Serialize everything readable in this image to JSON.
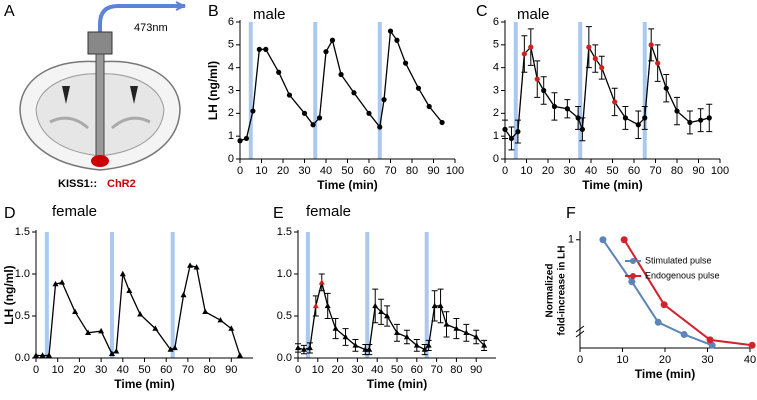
{
  "diagram": {
    "panel": "A",
    "wavelength": "473nm",
    "construct_prefix": "KISS1::",
    "construct_gene": "ChR2"
  },
  "chart_data": [
    {
      "type": "line",
      "panel": "B",
      "title": "male",
      "xlabel": "Time (min)",
      "ylabel": "LH (ng/ml)",
      "xlim": [
        0,
        100
      ],
      "xticks": [
        0,
        10,
        20,
        30,
        40,
        50,
        60,
        70,
        80,
        90,
        100
      ],
      "ylim": [
        0,
        6
      ],
      "yticks": [
        0,
        1,
        2,
        3,
        4,
        5,
        6
      ],
      "marker": "circle",
      "stimulus_times": [
        5,
        35,
        65
      ],
      "stimulus_color": "#a9c9ef",
      "x": [
        0,
        3,
        6,
        9,
        12,
        18,
        23,
        30,
        34,
        37,
        40,
        43,
        47,
        53,
        60,
        65,
        67,
        70,
        73,
        77,
        83,
        88,
        94
      ],
      "series": [
        {
          "color": "#000000",
          "values": [
            0.8,
            0.9,
            2.1,
            4.8,
            4.8,
            3.8,
            2.8,
            2.0,
            1.5,
            1.8,
            4.7,
            5.2,
            3.7,
            2.9,
            2.0,
            1.4,
            2.6,
            5.6,
            5.2,
            4.2,
            3.1,
            2.3,
            1.6
          ]
        }
      ]
    },
    {
      "type": "line",
      "panel": "C",
      "title": "male",
      "xlabel": "Time (min)",
      "xlim": [
        0,
        100
      ],
      "xticks": [
        0,
        10,
        20,
        30,
        40,
        50,
        60,
        70,
        80,
        90,
        100
      ],
      "ylim": [
        0,
        6
      ],
      "yticks": [
        0,
        1,
        2,
        3,
        4,
        5,
        6
      ],
      "marker": "circle",
      "stimulus_times": [
        5,
        35,
        65
      ],
      "stimulus_color": "#a9c9ef",
      "x": [
        0,
        3,
        6,
        9,
        12,
        15,
        18,
        23,
        29,
        34,
        36,
        39,
        42,
        45,
        51,
        56,
        62,
        65,
        68,
        71,
        75,
        80,
        86,
        91,
        95
      ],
      "series": [
        {
          "color": "#000000",
          "values": [
            1.3,
            0.9,
            1.2,
            4.6,
            4.9,
            3.5,
            3.0,
            2.3,
            2.2,
            1.8,
            1.3,
            4.9,
            4.4,
            4.0,
            2.5,
            1.8,
            1.5,
            1.8,
            5.0,
            4.2,
            3.1,
            2.1,
            1.6,
            1.7,
            1.8
          ],
          "errors": [
            0.4,
            0.5,
            0.5,
            0.8,
            0.8,
            0.8,
            0.6,
            0.6,
            0.4,
            0.5,
            0.5,
            0.9,
            0.6,
            0.5,
            0.6,
            0.5,
            0.6,
            0.5,
            0.7,
            0.8,
            0.6,
            0.6,
            0.5,
            0.5,
            0.6
          ],
          "marker_colors": [
            "#000000",
            "#000000",
            "#000000",
            "#d11e1e",
            "#d11e1e",
            "#d11e1e",
            "#000000",
            "#000000",
            "#000000",
            "#000000",
            "#000000",
            "#d11e1e",
            "#d11e1e",
            "#d11e1e",
            "#d11e1e",
            "#000000",
            "#000000",
            "#000000",
            "#d11e1e",
            "#d11e1e",
            "#000000",
            "#000000",
            "#000000",
            "#000000",
            "#000000"
          ]
        }
      ]
    },
    {
      "type": "line",
      "panel": "D",
      "title": "female",
      "xlabel": "Time (min)",
      "ylabel": "LH (ng/ml)",
      "xlim": [
        0,
        100
      ],
      "xticks": [
        0,
        10,
        20,
        30,
        40,
        50,
        60,
        70,
        80,
        90
      ],
      "ylim": [
        0,
        1.5
      ],
      "yticks": [
        {
          "value": 0,
          "label": "0.0"
        },
        {
          "value": 0.5,
          "label": "0.5"
        },
        {
          "value": 1,
          "label": "1.0"
        },
        {
          "value": 1.5,
          "label": "1.5"
        }
      ],
      "marker": "triangle",
      "stimulus_times": [
        5,
        35,
        63
      ],
      "stimulus_color": "#a9c9ef",
      "x": [
        0,
        3,
        6,
        9,
        12,
        18,
        24,
        30,
        35,
        37,
        40,
        43,
        48,
        55,
        62,
        64,
        68,
        71,
        74,
        78,
        85,
        90,
        94
      ],
      "series": [
        {
          "color": "#000000",
          "values": [
            0.03,
            0.03,
            0.03,
            0.88,
            0.9,
            0.55,
            0.3,
            0.32,
            0.05,
            0.08,
            1.0,
            0.8,
            0.52,
            0.35,
            0.1,
            0.12,
            0.75,
            1.1,
            1.08,
            0.55,
            0.45,
            0.35,
            0.03
          ]
        }
      ]
    },
    {
      "type": "line",
      "panel": "E",
      "title": "female",
      "xlabel": "Time (min)",
      "xlim": [
        0,
        100
      ],
      "xticks": [
        0,
        10,
        20,
        30,
        40,
        50,
        60,
        70,
        80,
        90
      ],
      "ylim": [
        0,
        1.5
      ],
      "yticks": [
        {
          "value": 0,
          "label": "0.0"
        },
        {
          "value": 0.5,
          "label": "0.5"
        },
        {
          "value": 1,
          "label": "1.0"
        },
        {
          "value": 1.5,
          "label": "1.5"
        }
      ],
      "marker": "triangle",
      "stimulus_times": [
        5,
        35,
        65
      ],
      "stimulus_color": "#a9c9ef",
      "x": [
        0,
        3,
        6,
        9,
        12,
        15,
        19,
        24,
        29,
        34,
        36,
        39,
        42,
        45,
        50,
        55,
        60,
        64,
        66,
        69,
        72,
        75,
        80,
        85,
        90,
        94
      ],
      "series": [
        {
          "color": "#000000",
          "values": [
            0.12,
            0.1,
            0.12,
            0.62,
            0.9,
            0.62,
            0.35,
            0.25,
            0.15,
            0.1,
            0.1,
            0.62,
            0.55,
            0.5,
            0.3,
            0.25,
            0.15,
            0.1,
            0.15,
            0.62,
            0.62,
            0.4,
            0.35,
            0.3,
            0.25,
            0.15
          ],
          "errors": [
            0.05,
            0.05,
            0.06,
            0.12,
            0.1,
            0.15,
            0.12,
            0.1,
            0.07,
            0.06,
            0.06,
            0.2,
            0.15,
            0.12,
            0.1,
            0.08,
            0.07,
            0.06,
            0.06,
            0.18,
            0.2,
            0.15,
            0.12,
            0.1,
            0.08,
            0.06
          ],
          "marker_colors": [
            "#000000",
            "#000000",
            "#000000",
            "#d11e1e",
            "#d11e1e",
            "#000000",
            "#000000",
            "#000000",
            "#000000",
            "#000000",
            "#000000",
            "#000000",
            "#000000",
            "#000000",
            "#000000",
            "#000000",
            "#000000",
            "#000000",
            "#000000",
            "#000000",
            "#000000",
            "#000000",
            "#000000",
            "#000000",
            "#000000",
            "#000000"
          ]
        }
      ]
    },
    {
      "type": "line",
      "panel": "F",
      "xlabel": "Time (min)",
      "ylabel": [
        "Normalized",
        "fold-increase in LH"
      ],
      "xlim": [
        0,
        40
      ],
      "xticks": [
        0,
        10,
        20,
        30,
        40
      ],
      "ylim": [
        0.2,
        1.05
      ],
      "yticks": [
        1
      ],
      "marker": "circle",
      "legend": "upper right",
      "series": [
        {
          "name": "Stimulated pulse",
          "color": "#5b84b8",
          "x": [
            5.4,
            12.2,
            18.4,
            24.5,
            31.1
          ],
          "values": [
            1.0,
            0.69,
            0.39,
            0.3,
            0.22
          ]
        },
        {
          "name": "Endogenous pulse",
          "color": "#d2222d",
          "x": [
            10.4,
            19.8,
            30.6,
            40.5
          ],
          "values": [
            1.0,
            0.52,
            0.26,
            0.22
          ]
        }
      ]
    }
  ]
}
